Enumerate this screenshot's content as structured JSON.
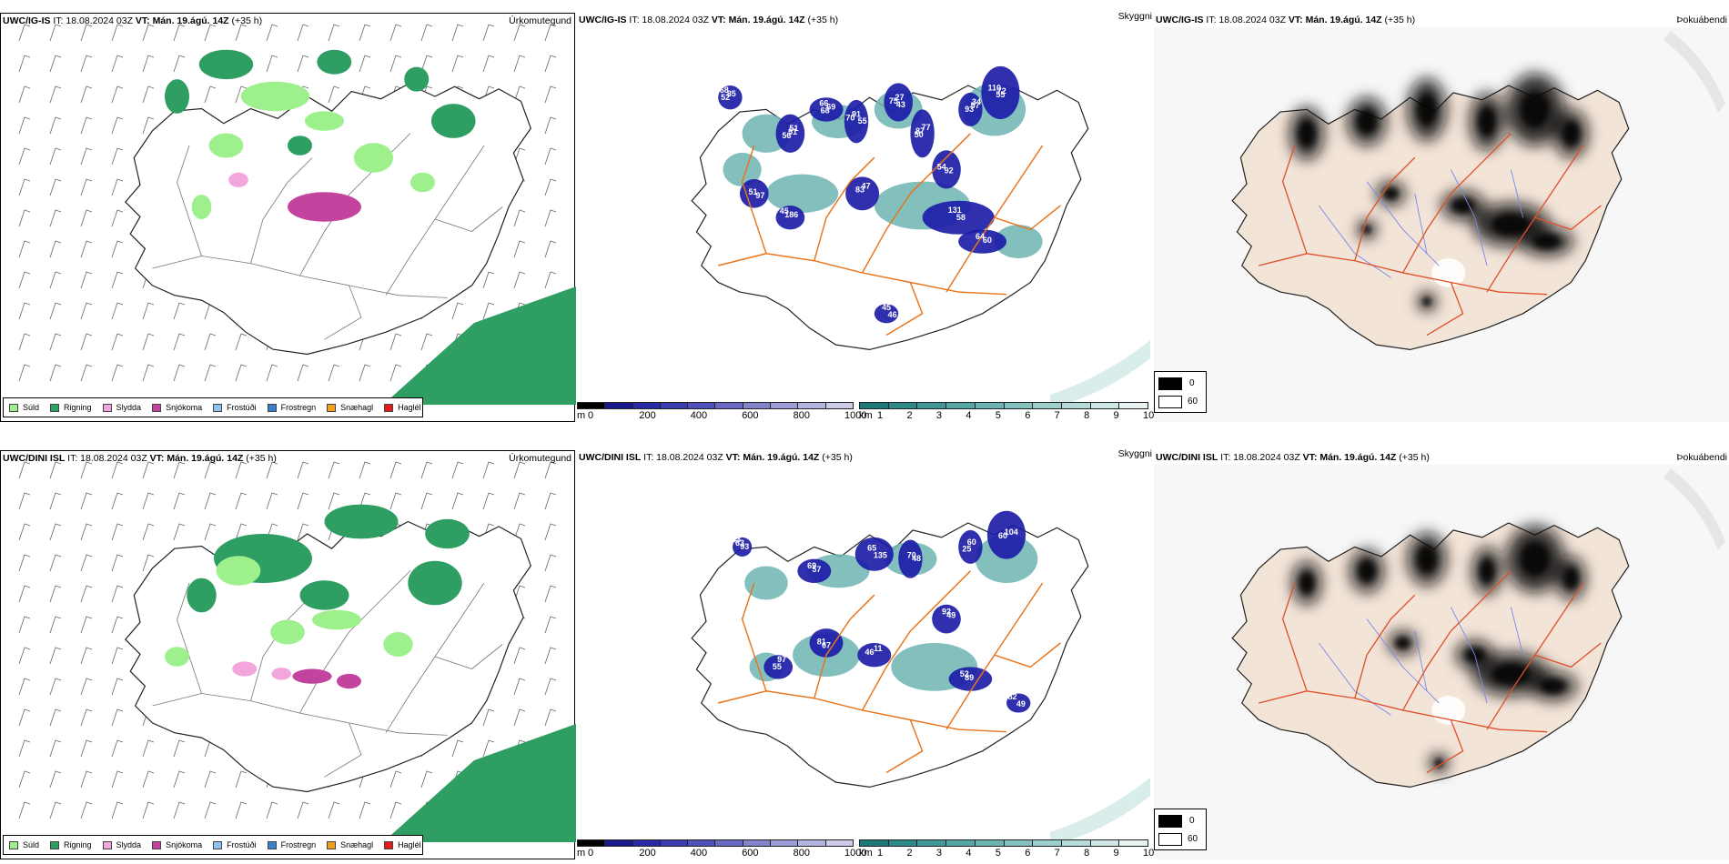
{
  "rows": [
    {
      "id": "ig",
      "model": "UWC/IG-IS",
      "init": " IT: 18.08.2024 03Z ",
      "vt_label": "VT:",
      "vt_value": " Mán. 19.ágú. 14Z",
      "offset": " (+35 h)",
      "labels_vis": [
        "68",
        "51",
        "66",
        "55",
        "27",
        "50",
        "57",
        "55",
        "54",
        "47",
        "51",
        "45",
        "58",
        "64",
        "46",
        "85",
        "56",
        "69",
        "91",
        "75",
        "77",
        "93",
        "110",
        "92",
        "83",
        "97",
        "186",
        "131",
        "60",
        "45",
        "52",
        "51",
        "68",
        "70",
        "43",
        "87",
        "34",
        "72"
      ]
    },
    {
      "id": "dini",
      "model": "UWC/DINI ISL",
      "init": " IT: 18.08.2024 03Z ",
      "vt_label": "VT:",
      "vt_value": " Mán. 19.ágú. 14Z",
      "offset": " (+35 h)",
      "labels_vis": [
        "63",
        "57",
        "65",
        "48",
        "60",
        "60",
        "49",
        "67",
        "46",
        "97",
        "89",
        "82",
        "93",
        "69",
        "135",
        "70",
        "25",
        "104",
        "92",
        "81",
        "11",
        "55",
        "52",
        "49",
        "63"
      ]
    }
  ],
  "panel_titles": {
    "precip": "Úrkomutegund",
    "vis": "Skyggni",
    "fog": "Þokuábendi"
  },
  "precip_legend": [
    {
      "label": "Súld",
      "color": "#9ef08d"
    },
    {
      "label": "Rigning",
      "color": "#2e9e63"
    },
    {
      "label": "Slydda",
      "color": "#f2a6dc"
    },
    {
      "label": "Snjókoma",
      "color": "#c2449e"
    },
    {
      "label": "Frostúði",
      "color": "#8fc2f0"
    },
    {
      "label": "Frostregn",
      "color": "#3a7fcc"
    },
    {
      "label": "Snæhagl",
      "color": "#f0a020"
    },
    {
      "label": "Haglél",
      "color": "#e41a1c"
    }
  ],
  "vis_colorbar_m": {
    "unit": "m",
    "ticks": [
      "0",
      "200",
      "400",
      "600",
      "800",
      "1000"
    ],
    "colors": [
      "#000000",
      "#1a1a8c",
      "#2a2aa6",
      "#3c3cb2",
      "#5050bb",
      "#6a6ac4",
      "#8484cc",
      "#9c9cd6",
      "#b4b4e0",
      "#cccce8"
    ]
  },
  "vis_colorbar_km": {
    "unit": "km",
    "ticks": [
      "1",
      "2",
      "3",
      "4",
      "5",
      "6",
      "7",
      "8",
      "9",
      "10"
    ],
    "colors": [
      "#1d7a78",
      "#2e8a88",
      "#409996",
      "#55a7a4",
      "#6cb4b1",
      "#84c2bf",
      "#9dcfcc",
      "#b6dcd9",
      "#cfe8e6",
      "#e8f4f3"
    ]
  },
  "fog_legend": {
    "top": "0",
    "bottom": "60",
    "top_color": "#000000",
    "bottom_color": "#ffffff"
  },
  "colors": {
    "rain": "#2e9e63",
    "drizzle": "#9ef08d",
    "snow": "#c2449e",
    "sleet": "#f2a6dc",
    "vis_low": "#1a1aa6",
    "vis_teal": "#6cb4b1",
    "roads": "#e8741c",
    "fog_land": "#f3e4d8",
    "fog_roads": "#e0502a",
    "fog_rivers": "#7a8ae8"
  }
}
